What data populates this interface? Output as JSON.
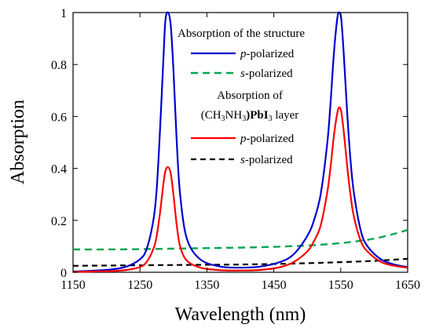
{
  "chart_data": {
    "type": "line",
    "xlabel": "Wavelength (nm)",
    "ylabel": "Absorption",
    "xlim": [
      1150,
      1650
    ],
    "ylim": [
      0,
      1
    ],
    "xticks": [
      1150,
      1250,
      1350,
      1450,
      1550,
      1650
    ],
    "yticks": [
      0,
      0.2,
      0.4,
      0.6,
      0.8,
      1
    ],
    "ytick_labels": [
      "0",
      "0.2",
      "0.4",
      "0.6",
      "0.8",
      "1"
    ],
    "grid": false,
    "legend_position": "top-right",
    "legend": {
      "group1_heading": "Absorption of the structure",
      "group2_heading_line1": "Absorption of",
      "group2_heading_line2_pre": "(CH",
      "group2_heading_line2_sub1": "3",
      "group2_heading_line2_mid": "NH",
      "group2_heading_line2_sub2": "3",
      "group2_heading_line2_bold": ")PbI",
      "group2_heading_line2_sub3": "3",
      "group2_heading_line2_post": " layer",
      "p_italic": "p",
      "s_italic": "s",
      "polarized_suffix": "-polarized"
    },
    "series": [
      {
        "name": "p-polarized",
        "group": "Absorption of the structure",
        "color": "#0000CC",
        "dash": "solid",
        "x": [
          1150,
          1180,
          1210,
          1230,
          1250,
          1260,
          1270,
          1275,
          1280,
          1285,
          1288,
          1292,
          1296,
          1300,
          1305,
          1310,
          1320,
          1340,
          1370,
          1400,
          1430,
          1460,
          1480,
          1500,
          1510,
          1520,
          1530,
          1535,
          1540,
          1545,
          1548,
          1551,
          1555,
          1560,
          1565,
          1570,
          1580,
          1590,
          1610,
          1630,
          1650
        ],
        "y": [
          0.003,
          0.006,
          0.012,
          0.022,
          0.05,
          0.09,
          0.2,
          0.32,
          0.55,
          0.82,
          0.97,
          1.0,
          0.95,
          0.78,
          0.5,
          0.3,
          0.13,
          0.05,
          0.022,
          0.018,
          0.022,
          0.04,
          0.07,
          0.14,
          0.2,
          0.3,
          0.5,
          0.66,
          0.85,
          0.98,
          1.0,
          0.97,
          0.82,
          0.6,
          0.42,
          0.3,
          0.16,
          0.1,
          0.05,
          0.03,
          0.02
        ]
      },
      {
        "name": "s-polarized",
        "group": "Absorption of the structure",
        "color": "#00A651",
        "dash": "dashed",
        "x": [
          1150,
          1200,
          1250,
          1300,
          1350,
          1400,
          1450,
          1500,
          1530,
          1560,
          1590,
          1610,
          1630,
          1650
        ],
        "y": [
          0.088,
          0.088,
          0.089,
          0.091,
          0.093,
          0.095,
          0.098,
          0.103,
          0.108,
          0.115,
          0.125,
          0.135,
          0.148,
          0.163
        ]
      },
      {
        "name": "p-polarized",
        "group": "Absorption of (CH3NH3)PbI3 layer",
        "color": "#FF0000",
        "dash": "solid",
        "x": [
          1150,
          1180,
          1210,
          1230,
          1250,
          1260,
          1270,
          1275,
          1280,
          1285,
          1288,
          1292,
          1296,
          1300,
          1305,
          1310,
          1320,
          1340,
          1370,
          1400,
          1430,
          1460,
          1480,
          1500,
          1510,
          1520,
          1530,
          1535,
          1540,
          1545,
          1548,
          1551,
          1555,
          1560,
          1565,
          1570,
          1580,
          1590,
          1610,
          1630,
          1650
        ],
        "y": [
          0.001,
          0.003,
          0.005,
          0.009,
          0.02,
          0.04,
          0.09,
          0.14,
          0.23,
          0.34,
          0.39,
          0.405,
          0.38,
          0.3,
          0.18,
          0.1,
          0.045,
          0.018,
          0.008,
          0.007,
          0.009,
          0.02,
          0.04,
          0.08,
          0.12,
          0.18,
          0.31,
          0.41,
          0.53,
          0.615,
          0.635,
          0.615,
          0.53,
          0.4,
          0.29,
          0.21,
          0.12,
          0.08,
          0.04,
          0.025,
          0.018
        ]
      },
      {
        "name": "s-polarized",
        "group": "Absorption of (CH3NH3)PbI3 layer",
        "color": "#000000",
        "dash": "dashed",
        "x": [
          1150,
          1200,
          1250,
          1300,
          1350,
          1400,
          1450,
          1500,
          1550,
          1600,
          1650
        ],
        "y": [
          0.025,
          0.026,
          0.027,
          0.028,
          0.029,
          0.03,
          0.032,
          0.035,
          0.039,
          0.044,
          0.052
        ]
      }
    ]
  }
}
